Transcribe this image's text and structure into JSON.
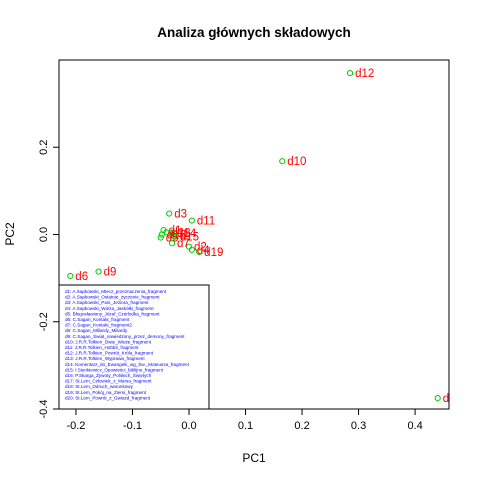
{
  "chart_data": {
    "type": "scatter",
    "title": "Analiza głównych składowych",
    "xlabel": "PC1",
    "ylabel": "PC2",
    "xlim": [
      -0.23,
      0.46
    ],
    "ylim": [
      -0.4,
      0.4
    ],
    "xticks": [
      -0.2,
      -0.1,
      0.0,
      0.1,
      0.2,
      0.3,
      0.4
    ],
    "xtick_labels": [
      "-0.2",
      "-0.1",
      "0.0",
      "0.1",
      "0.2",
      "0.3",
      "0.4"
    ],
    "yticks": [
      -0.4,
      -0.2,
      0.0,
      0.2
    ],
    "ytick_labels": [
      "-0.4",
      "-0.2",
      "0.0",
      "0.2"
    ],
    "point_color": "#00cc00",
    "label_color": "#ff0000",
    "legend_color": "#0000ff",
    "points": [
      {
        "label": "d12",
        "x": 0.285,
        "y": 0.37
      },
      {
        "label": "d10",
        "x": 0.165,
        "y": 0.168
      },
      {
        "label": "d3",
        "x": -0.035,
        "y": 0.048
      },
      {
        "label": "d11",
        "x": 0.005,
        "y": 0.032
      },
      {
        "label": "d1",
        "x": -0.045,
        "y": 0.01
      },
      {
        "label": "d18",
        "x": -0.04,
        "y": 0.005
      },
      {
        "label": "d14",
        "x": -0.03,
        "y": 0.003
      },
      {
        "label": "d16",
        "x": -0.048,
        "y": 0.0
      },
      {
        "label": "d15",
        "x": -0.025,
        "y": -0.005
      },
      {
        "label": "d5",
        "x": -0.05,
        "y": -0.007
      },
      {
        "label": "d2",
        "x": 0.0,
        "y": -0.028
      },
      {
        "label": "d7",
        "x": -0.03,
        "y": -0.02
      },
      {
        "label": "d4",
        "x": 0.005,
        "y": -0.035
      },
      {
        "label": "d19",
        "x": 0.018,
        "y": -0.04
      },
      {
        "label": "d6",
        "x": -0.21,
        "y": -0.095
      },
      {
        "label": "d9",
        "x": -0.16,
        "y": -0.085
      },
      {
        "label": "d",
        "x": 0.44,
        "y": -0.375
      }
    ],
    "legend": [
      "d1: A.Sapkowski_Miecz_przeznaczenia_fragment",
      "d2: A.Sapkowski_Ostatnie_życzenie_fragment",
      "d3: A.Sapkowski_Pani_Jeziora_fragment",
      "d4: A.Sapkowski_Wieża_Jaskółki_fragment",
      "d5: Błogosławiony_Józef_Czerlodka_fragment",
      "d6: C.Sagan_Kontakt_fragment",
      "d7: C.Sagan_Kontakt_fragment2",
      "d8: C.Sagan_Miliardy_Miliardy",
      "d9: C.Sagan_Świat_nawiedzony_przez_demony_fragment",
      "d10: J.R.R.Tolkien_Dwie_Wieże_fragment",
      "d11: J.R.R.Tolkien_Hobbit_fragment",
      "d12: J.R.R.Tolkien_Powrót_Króla_fragment",
      "d13: J.R.R.Tolkien_Wyprawa_fragment",
      "d14: Komentarz_do_Ewangelii_wg_Św._Mateusza_fragment",
      "d15: I.Sienkiewicz_Opowieści_biblijne_fragment",
      "d16: P.Skarga_Żywoty_Polskich_Świętych",
      "d17: St.Lem_Człowiek_z_Marsa_fragment",
      "d18: St.Lem_Odruch_warunkowy",
      "d19: St.Lem_Pokój_na_Ziemi_fragment",
      "d20: St.Lem_Powrót_z_Gwiazd_fragment"
    ]
  }
}
